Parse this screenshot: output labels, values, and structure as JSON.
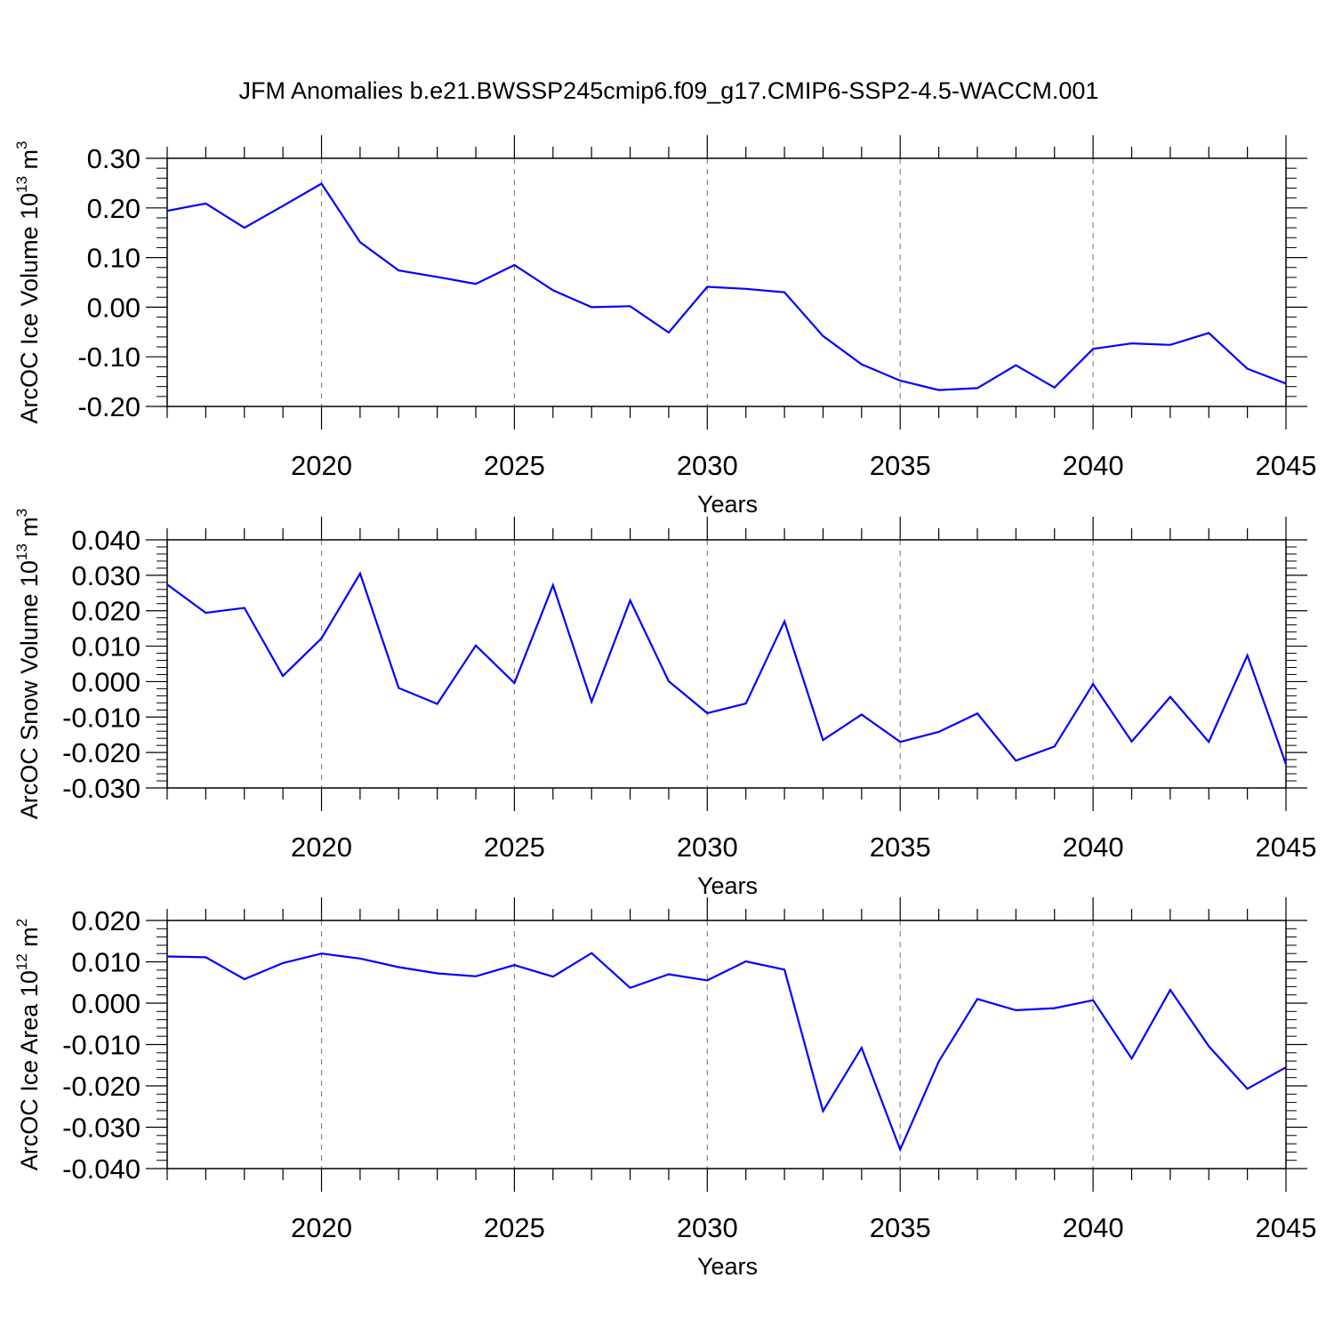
{
  "title": "JFM Anomalies b.e21.BWSSP245cmip6.f09_g17.CMIP6-SSP2-4.5-WACCM.001",
  "colors": {
    "line": "#0000ff",
    "axes": "#000000",
    "grid": "#888888"
  },
  "chart_data": [
    {
      "type": "line",
      "name": "ice-volume",
      "ylabel": {
        "text": "ArcOC Ice Volume 10",
        "exp": "13",
        "unit": " m",
        "unit_exp": "3"
      },
      "xlabel": "Years",
      "xlim": [
        2016,
        2045
      ],
      "ylim": [
        -0.2,
        0.3
      ],
      "yticks": [
        -0.2,
        -0.1,
        0.0,
        0.1,
        0.2,
        0.3
      ],
      "ytick_labels": [
        "-0.20",
        "-0.10",
        "0.00",
        "0.10",
        "0.20",
        "0.30"
      ],
      "xticks": [
        2020,
        2025,
        2030,
        2035,
        2040,
        2045
      ],
      "xtick_labels": [
        "2020",
        "2025",
        "2030",
        "2035",
        "2040",
        "2045"
      ],
      "grid": "vertical dashed at major x ticks",
      "x": [
        2016,
        2017,
        2018,
        2019,
        2020,
        2021,
        2022,
        2023,
        2024,
        2025,
        2026,
        2027,
        2028,
        2029,
        2030,
        2031,
        2032,
        2033,
        2034,
        2035,
        2036,
        2037,
        2038,
        2039,
        2040,
        2041,
        2042,
        2043,
        2044,
        2045
      ],
      "values": [
        0.194,
        0.209,
        0.16,
        0.204,
        0.249,
        0.131,
        0.074,
        0.061,
        0.047,
        0.085,
        0.034,
        0.0,
        0.002,
        -0.051,
        0.041,
        0.037,
        0.03,
        -0.058,
        -0.115,
        -0.148,
        -0.167,
        -0.163,
        -0.117,
        -0.162,
        -0.084,
        -0.073,
        -0.076,
        -0.052,
        -0.124,
        -0.154
      ]
    },
    {
      "type": "line",
      "name": "snow-volume",
      "ylabel": {
        "text": "ArcOC Snow Volume 10",
        "exp": "13",
        "unit": " m",
        "unit_exp": "3"
      },
      "xlabel": "Years",
      "xlim": [
        2016,
        2045
      ],
      "ylim": [
        -0.03,
        0.04
      ],
      "yticks": [
        -0.03,
        -0.02,
        -0.01,
        0.0,
        0.01,
        0.02,
        0.03,
        0.04
      ],
      "ytick_labels": [
        "-0.030",
        "-0.020",
        "-0.010",
        "0.000",
        "0.010",
        "0.020",
        "0.030",
        "0.040"
      ],
      "xticks": [
        2020,
        2025,
        2030,
        2035,
        2040,
        2045
      ],
      "xtick_labels": [
        "2020",
        "2025",
        "2030",
        "2035",
        "2040",
        "2045"
      ],
      "grid": "vertical dashed at major x ticks",
      "x": [
        2016,
        2017,
        2018,
        2019,
        2020,
        2021,
        2022,
        2023,
        2024,
        2025,
        2026,
        2027,
        2028,
        2029,
        2030,
        2031,
        2032,
        2033,
        2034,
        2035,
        2036,
        2037,
        2038,
        2039,
        2040,
        2041,
        2042,
        2043,
        2044,
        2045
      ],
      "values": [
        0.0274,
        0.0194,
        0.0208,
        0.0016,
        0.0122,
        0.0305,
        -0.0018,
        -0.0063,
        0.0102,
        -0.0004,
        0.0272,
        -0.0057,
        0.0229,
        0.0001,
        -0.0089,
        -0.0062,
        0.017,
        -0.0165,
        -0.0093,
        -0.017,
        -0.0142,
        -0.009,
        -0.0223,
        -0.0183,
        -0.0007,
        -0.0169,
        -0.0043,
        -0.017,
        0.0074,
        -0.0233
      ]
    },
    {
      "type": "line",
      "name": "ice-area",
      "ylabel": {
        "text": "ArcOC Ice Area 10",
        "exp": "12",
        "unit": " m",
        "unit_exp": "2"
      },
      "xlabel": "Years",
      "xlim": [
        2016,
        2045
      ],
      "ylim": [
        -0.04,
        0.02
      ],
      "yticks": [
        -0.04,
        -0.03,
        -0.02,
        -0.01,
        0.0,
        0.01,
        0.02
      ],
      "ytick_labels": [
        "-0.040",
        "-0.030",
        "-0.020",
        "-0.010",
        "0.000",
        "0.010",
        "0.020"
      ],
      "xticks": [
        2020,
        2025,
        2030,
        2035,
        2040,
        2045
      ],
      "xtick_labels": [
        "2020",
        "2025",
        "2030",
        "2035",
        "2040",
        "2045"
      ],
      "grid": "vertical dashed at major x ticks",
      "x": [
        2016,
        2017,
        2018,
        2019,
        2020,
        2021,
        2022,
        2023,
        2024,
        2025,
        2026,
        2027,
        2028,
        2029,
        2030,
        2031,
        2032,
        2033,
        2034,
        2035,
        2036,
        2037,
        2038,
        2039,
        2040,
        2041,
        2042,
        2043,
        2044,
        2045
      ],
      "values": [
        0.0113,
        0.0111,
        0.0058,
        0.0097,
        0.012,
        0.0108,
        0.0087,
        0.0072,
        0.0065,
        0.0092,
        0.0064,
        0.0121,
        0.0037,
        0.007,
        0.0055,
        0.0101,
        0.0081,
        -0.0261,
        -0.0108,
        -0.0354,
        -0.0141,
        0.001,
        -0.0017,
        -0.0012,
        0.0007,
        -0.0134,
        0.0032,
        -0.0104,
        -0.0207,
        -0.0155
      ]
    }
  ]
}
